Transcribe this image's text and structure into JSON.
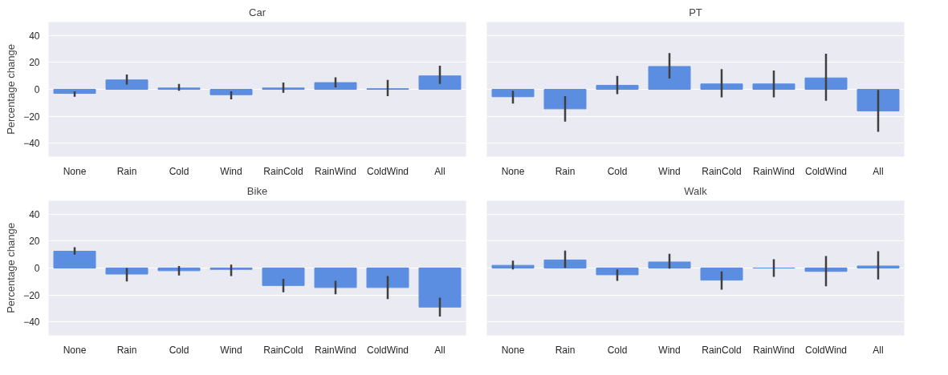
{
  "chart_data": [
    {
      "type": "bar",
      "title": "Car",
      "ylabel": "Percentage change",
      "categories": [
        "None",
        "Rain",
        "Cold",
        "Wind",
        "RainCold",
        "RainWind",
        "ColdWind",
        "All"
      ],
      "values": [
        -3,
        7,
        1,
        -4,
        1,
        5,
        0.5,
        10
      ],
      "errors": [
        [
          -5.5,
          -1.5
        ],
        [
          3.5,
          11
        ],
        [
          -1,
          4
        ],
        [
          -7.5,
          -1.5
        ],
        [
          -2.5,
          5
        ],
        [
          1.5,
          9
        ],
        [
          -5,
          7
        ],
        [
          4,
          17.5
        ]
      ],
      "color": "#5b8ee0",
      "ylim": [
        -50,
        50
      ],
      "yticks": [
        -40,
        -20,
        0,
        20,
        40
      ],
      "grid": "y"
    },
    {
      "type": "bar",
      "title": "PT",
      "categories": [
        "None",
        "Rain",
        "Cold",
        "Wind",
        "RainCold",
        "RainWind",
        "ColdWind",
        "All"
      ],
      "values": [
        -5.5,
        -14.5,
        3,
        17,
        4,
        4,
        8.5,
        -16
      ],
      "errors": [
        [
          -10.5,
          -1
        ],
        [
          -24,
          -5
        ],
        [
          -3.5,
          10
        ],
        [
          8,
          27
        ],
        [
          -6,
          15
        ],
        [
          -6,
          14
        ],
        [
          -8.5,
          26.5
        ],
        [
          -31.5,
          -0.5
        ]
      ],
      "color": "#5b8ee0",
      "ylim": [
        -50,
        50
      ],
      "yticks": [
        -40,
        -20,
        0,
        20,
        40
      ],
      "grid": "y",
      "tick_labels": "x"
    },
    {
      "type": "bar",
      "title": "Bike",
      "ylabel": "Percentage change",
      "categories": [
        "None",
        "Rain",
        "Cold",
        "Wind",
        "RainCold",
        "RainWind",
        "ColdWind",
        "All"
      ],
      "values": [
        12.5,
        -4.5,
        -2,
        -1,
        -13,
        -14.5,
        -14.5,
        -29
      ],
      "errors": [
        [
          10,
          15.5
        ],
        [
          -10,
          0
        ],
        [
          -5.5,
          1.5
        ],
        [
          -6,
          2.5
        ],
        [
          -18,
          -8
        ],
        [
          -19.5,
          -9.5
        ],
        [
          -23,
          -6
        ],
        [
          -36,
          -22
        ]
      ],
      "color": "#5b8ee0",
      "ylim": [
        -50,
        50
      ],
      "yticks": [
        -40,
        -20,
        0,
        20,
        40
      ],
      "grid": "y"
    },
    {
      "type": "bar",
      "title": "Walk",
      "categories": [
        "None",
        "Rain",
        "Cold",
        "Wind",
        "RainCold",
        "RainWind",
        "ColdWind",
        "All"
      ],
      "values": [
        2,
        6,
        -5,
        4.5,
        -9,
        0,
        -2.5,
        1.5
      ],
      "errors": [
        [
          -1,
          5.5
        ],
        [
          0,
          13
        ],
        [
          -9.5,
          -1
        ],
        [
          -0.5,
          10.5
        ],
        [
          -16,
          -2.5
        ],
        [
          -6.5,
          6.5
        ],
        [
          -13.5,
          9
        ],
        [
          -8.5,
          12.5
        ]
      ],
      "color": "#5b8ee0",
      "ylim": [
        -50,
        50
      ],
      "yticks": [
        -40,
        -20,
        0,
        20,
        40
      ],
      "grid": "y",
      "tick_labels": "x"
    }
  ]
}
